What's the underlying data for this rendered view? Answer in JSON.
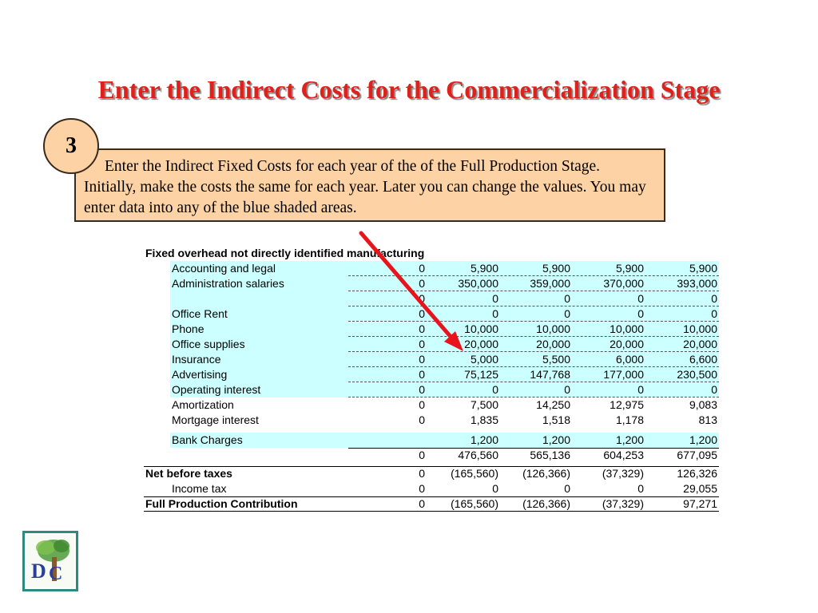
{
  "title": "Enter the Indirect Costs for the Commercialization Stage",
  "step_number": "3",
  "instruction": "Enter the Indirect Fixed Costs for each year of the of the Full Production Stage. Initially, make the costs the same for each year. Later you can change the values. You may enter data into any of the blue shaded areas.",
  "sheet": {
    "section_title": "Fixed overhead not directly identified manufacturing",
    "rows": [
      {
        "label": "Accounting and legal",
        "values": [
          "0",
          "5,900",
          "5,900",
          "5,900",
          "5,900"
        ]
      },
      {
        "label": "Administration salaries",
        "values": [
          "0",
          "350,000",
          "359,000",
          "370,000",
          "393,000"
        ]
      },
      {
        "label": "",
        "values": [
          "0",
          "0",
          "0",
          "0",
          "0"
        ]
      },
      {
        "label": "Office Rent",
        "values": [
          "0",
          "0",
          "0",
          "0",
          "0"
        ]
      },
      {
        "label": "Phone",
        "values": [
          "0",
          "10,000",
          "10,000",
          "10,000",
          "10,000"
        ]
      },
      {
        "label": "Office supplies",
        "values": [
          "0",
          "20,000",
          "20,000",
          "20,000",
          "20,000"
        ]
      },
      {
        "label": "Insurance",
        "values": [
          "0",
          "5,000",
          "5,500",
          "6,000",
          "6,600"
        ]
      },
      {
        "label": "Advertising",
        "values": [
          "0",
          "75,125",
          "147,768",
          "177,000",
          "230,500"
        ]
      },
      {
        "label": "Operating interest",
        "values": [
          "0",
          "0",
          "0",
          "0",
          "0"
        ]
      },
      {
        "label": "Amortization",
        "values": [
          "0",
          "7,500",
          "14,250",
          "12,975",
          "9,083"
        ]
      },
      {
        "label": "Mortgage interest",
        "values": [
          "0",
          "1,835",
          "1,518",
          "1,178",
          "813"
        ]
      }
    ],
    "bank_charges": {
      "label": "Bank Charges",
      "values": [
        "",
        "1,200",
        "1,200",
        "1,200",
        "1,200"
      ]
    },
    "total": {
      "values": [
        "0",
        "476,560",
        "565,136",
        "604,253",
        "677,095"
      ]
    },
    "net_before_taxes": {
      "label": "Net before taxes",
      "values": [
        "0",
        "(165,560)",
        "(126,366)",
        "(37,329)",
        "126,326"
      ]
    },
    "income_tax": {
      "label": "Income tax",
      "values": [
        "0",
        "0",
        "0",
        "0",
        "29,055"
      ]
    },
    "full_production": {
      "label": "Full Production Contribution",
      "values": [
        "0",
        "(165,560)",
        "(126,366)",
        "(37,329)",
        "97,271"
      ]
    }
  },
  "colors": {
    "title": "#e0201b",
    "instruction_fill": "#fdd3a6",
    "input_shading": "#ccffff",
    "arrow": "#e8141b",
    "logo_border": "#2d8a7e"
  },
  "icons": {
    "arrow": "red-arrow-icon",
    "logo": "dc-tree-logo-icon"
  }
}
